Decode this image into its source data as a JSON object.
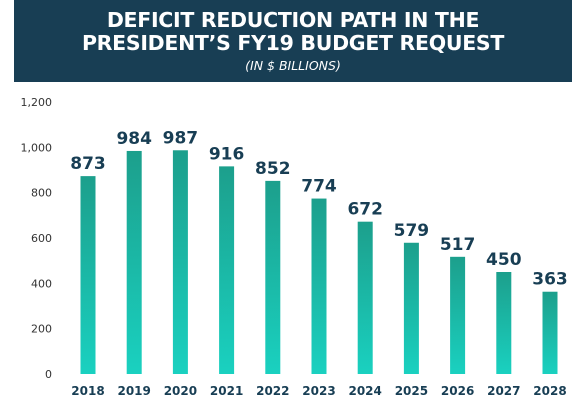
{
  "header": {
    "title_line1": "DEFICIT REDUCTION PATH IN THE",
    "title_line2": "PRESIDENT’S FY19 BUDGET REQUEST",
    "subtitle": "(IN $ BILLIONS)"
  },
  "colors": {
    "header_bg": "#183e54",
    "bar_top": "#1c9f8c",
    "bar_bottom": "#1ad1c0",
    "label": "#183e54",
    "axis_text": "#333333"
  },
  "chart_data": {
    "type": "bar",
    "title": "DEFICIT REDUCTION PATH IN THE PRESIDENT’S FY19 BUDGET REQUEST",
    "subtitle": "(IN $ BILLIONS)",
    "xlabel": "",
    "ylabel": "",
    "categories": [
      "2018",
      "2019",
      "2020",
      "2021",
      "2022",
      "2023",
      "2024",
      "2025",
      "2026",
      "2027",
      "2028"
    ],
    "values": [
      873,
      984,
      987,
      916,
      852,
      774,
      672,
      579,
      517,
      450,
      363
    ],
    "value_labels": [
      "873",
      "984",
      "987",
      "916",
      "852",
      "774",
      "672",
      "579",
      "517",
      "450",
      "363"
    ],
    "yticks": [
      "0",
      "200",
      "400",
      "600",
      "800",
      "1,000",
      "1,200"
    ],
    "ylim": [
      0,
      1200
    ],
    "grid": false,
    "legend": "none"
  }
}
